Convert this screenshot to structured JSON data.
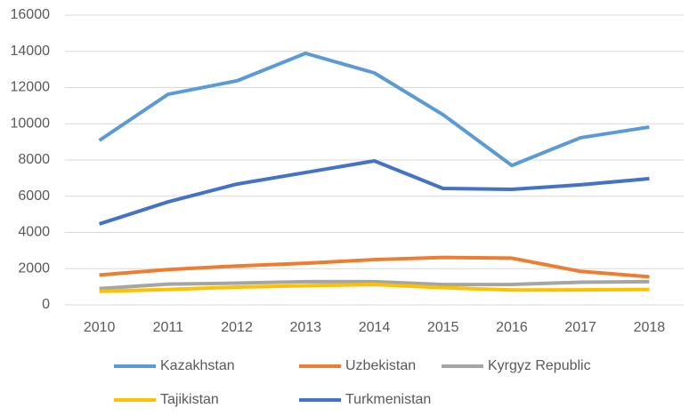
{
  "chart_data": {
    "type": "line",
    "categories": [
      "2010",
      "2011",
      "2012",
      "2013",
      "2014",
      "2015",
      "2016",
      "2017",
      "2018"
    ],
    "series": [
      {
        "name": "Kazakhstan",
        "color": "#5b9bd5",
        "values": [
          9080,
          11630,
          12370,
          13890,
          12810,
          10500,
          7700,
          9230,
          9820
        ]
      },
      {
        "name": "Uzbekistan",
        "color": "#ed7d31",
        "values": [
          1650,
          1950,
          2150,
          2300,
          2500,
          2620,
          2580,
          1850,
          1550
        ]
      },
      {
        "name": "Kyrgyz Republic",
        "color": "#a5a5a5",
        "values": [
          900,
          1150,
          1200,
          1280,
          1280,
          1120,
          1130,
          1250,
          1280
        ]
      },
      {
        "name": "Tajikistan",
        "color": "#ffc000",
        "values": [
          750,
          850,
          980,
          1060,
          1130,
          950,
          820,
          830,
          850
        ]
      },
      {
        "name": "Turkmenistan",
        "color": "#4472c4",
        "values": [
          4470,
          5690,
          6670,
          7310,
          7950,
          6430,
          6380,
          6630,
          6970
        ]
      }
    ],
    "ylim": [
      0,
      16000
    ],
    "yticks": [
      0,
      2000,
      4000,
      6000,
      8000,
      10000,
      12000,
      14000,
      16000
    ],
    "grid": true,
    "legend": "bottom"
  }
}
